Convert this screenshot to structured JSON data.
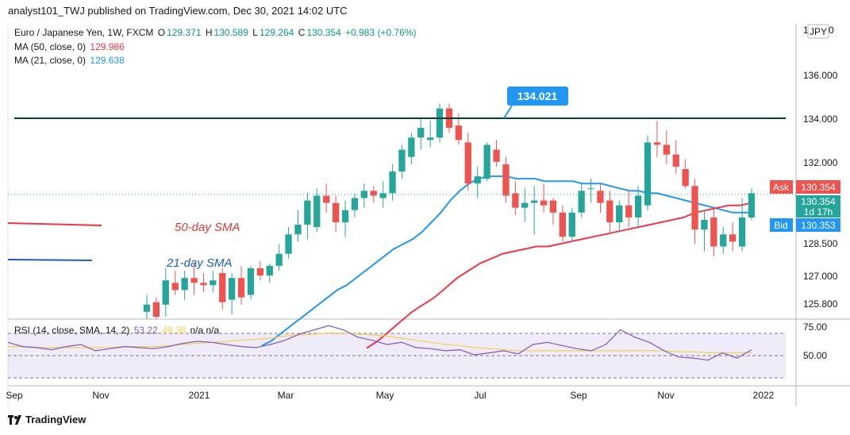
{
  "header": {
    "published_line": "analyst101_TWJ published on TradingView.com, Dec 30, 2021 14:02 UTC"
  },
  "legend": {
    "title": "Euro / Japanese Yen, 1W, FXCM",
    "o_label": "O",
    "o_val": "129.371",
    "h_label": "H",
    "h_val": "130.589",
    "l_label": "L",
    "l_val": "129.264",
    "c_label": "C",
    "c_val": "130.354",
    "change": "+0.983 (+0.76%)",
    "ma50_label": "MA (50, close, 0)",
    "ma50_val": "129.986",
    "ma21_label": "MA (21, close, 0)",
    "ma21_val": "129.638",
    "rsi_label": "RSI (14, close, SMA, 14, 2)",
    "rsi_val": "53.22",
    "rsi_sma_val": "49.38",
    "rsi_na": "n/a n/a"
  },
  "annotations": {
    "level_label": "134.021",
    "sma50_text": "50-day SMA",
    "sma21_text": "21-day SMA"
  },
  "price_axis": {
    "currency": "JPY",
    "top_partial": "1",
    "top_partial_tail": "0",
    "ticks": [
      "136.000",
      "134.000",
      "132.000",
      "128.500",
      "127.000",
      "125.800"
    ],
    "ask_label": "Ask",
    "ask_val": "130.354",
    "last_val": "130.354",
    "countdown": "1d 17h",
    "bid_label": "Bid",
    "bid_val": "130.353",
    "rsi_ticks": [
      "75.00",
      "50.00"
    ]
  },
  "time_axis": [
    "Sep",
    "Nov",
    "2021",
    "Mar",
    "May",
    "Jul",
    "Sep",
    "Nov",
    "2022"
  ],
  "brand": {
    "name": "TradingView"
  },
  "colors": {
    "up": "#26a69a",
    "down": "#ef5350",
    "ma50": "#f23645",
    "ma21": "#2196f3",
    "rsi": "#7e57c2",
    "rsi_sma": "#f5d14e",
    "level": "#0b3d2e",
    "label_bg": "#2196f3"
  },
  "chart_data": {
    "type": "candlestick",
    "title": "Euro / Japanese Yen, 1W, FXCM",
    "ylim": [
      125.2,
      137.4
    ],
    "rsi_ylim": [
      20,
      80
    ],
    "horizontal_level": 134.021,
    "candles": [
      {
        "o": 125.5,
        "h": 126.2,
        "l": 125.2,
        "c": 125.8
      },
      {
        "o": 125.9,
        "h": 126.1,
        "l": 125.2,
        "c": 125.3
      },
      {
        "o": 125.8,
        "h": 127.3,
        "l": 125.3,
        "c": 126.8
      },
      {
        "o": 126.7,
        "h": 127.2,
        "l": 126.2,
        "c": 126.4
      },
      {
        "o": 126.4,
        "h": 127.2,
        "l": 126.0,
        "c": 126.9
      },
      {
        "o": 126.9,
        "h": 127.5,
        "l": 126.2,
        "c": 126.7
      },
      {
        "o": 126.7,
        "h": 127.1,
        "l": 126.3,
        "c": 126.6
      },
      {
        "o": 126.6,
        "h": 127.2,
        "l": 126.3,
        "c": 126.8
      },
      {
        "o": 127.1,
        "h": 127.3,
        "l": 125.6,
        "c": 125.9
      },
      {
        "o": 126.0,
        "h": 127.1,
        "l": 125.4,
        "c": 126.9
      },
      {
        "o": 126.9,
        "h": 127.4,
        "l": 125.8,
        "c": 126.1
      },
      {
        "o": 126.2,
        "h": 127.4,
        "l": 126.0,
        "c": 127.3
      },
      {
        "o": 127.3,
        "h": 127.6,
        "l": 126.8,
        "c": 127.0
      },
      {
        "o": 127.0,
        "h": 127.5,
        "l": 126.7,
        "c": 127.4
      },
      {
        "o": 127.4,
        "h": 128.3,
        "l": 127.2,
        "c": 127.9
      },
      {
        "o": 127.9,
        "h": 129.0,
        "l": 127.7,
        "c": 128.7
      },
      {
        "o": 128.7,
        "h": 129.7,
        "l": 128.4,
        "c": 129.1
      },
      {
        "o": 129.1,
        "h": 130.4,
        "l": 128.5,
        "c": 130.1
      },
      {
        "o": 129.0,
        "h": 130.6,
        "l": 128.8,
        "c": 130.3
      },
      {
        "o": 130.3,
        "h": 130.8,
        "l": 129.6,
        "c": 130.0
      },
      {
        "o": 130.0,
        "h": 130.3,
        "l": 128.8,
        "c": 129.2
      },
      {
        "o": 129.2,
        "h": 130.1,
        "l": 128.6,
        "c": 129.7
      },
      {
        "o": 129.7,
        "h": 130.4,
        "l": 129.4,
        "c": 130.2
      },
      {
        "o": 130.2,
        "h": 130.8,
        "l": 129.8,
        "c": 130.5
      },
      {
        "o": 130.5,
        "h": 130.7,
        "l": 130.0,
        "c": 130.3
      },
      {
        "o": 130.2,
        "h": 130.9,
        "l": 129.8,
        "c": 130.4
      },
      {
        "o": 130.4,
        "h": 131.6,
        "l": 130.1,
        "c": 131.3
      },
      {
        "o": 131.3,
        "h": 132.4,
        "l": 131.0,
        "c": 132.2
      },
      {
        "o": 131.9,
        "h": 132.9,
        "l": 131.6,
        "c": 132.7
      },
      {
        "o": 132.7,
        "h": 133.5,
        "l": 132.2,
        "c": 133.1
      },
      {
        "o": 132.6,
        "h": 133.4,
        "l": 132.3,
        "c": 132.7
      },
      {
        "o": 132.7,
        "h": 134.1,
        "l": 132.5,
        "c": 133.9
      },
      {
        "o": 133.9,
        "h": 134.1,
        "l": 132.9,
        "c": 133.1
      },
      {
        "o": 133.2,
        "h": 133.7,
        "l": 132.4,
        "c": 132.6
      },
      {
        "o": 132.5,
        "h": 132.9,
        "l": 130.5,
        "c": 130.8
      },
      {
        "o": 130.8,
        "h": 131.5,
        "l": 130.2,
        "c": 131.1
      },
      {
        "o": 131.0,
        "h": 132.5,
        "l": 130.9,
        "c": 132.4
      },
      {
        "o": 132.2,
        "h": 132.6,
        "l": 131.5,
        "c": 131.7
      },
      {
        "o": 131.6,
        "h": 131.9,
        "l": 130.0,
        "c": 130.3
      },
      {
        "o": 130.4,
        "h": 130.9,
        "l": 129.5,
        "c": 129.8
      },
      {
        "o": 129.8,
        "h": 130.6,
        "l": 129.2,
        "c": 130.0
      },
      {
        "o": 130.0,
        "h": 130.7,
        "l": 128.7,
        "c": 130.1
      },
      {
        "o": 130.1,
        "h": 130.8,
        "l": 129.6,
        "c": 129.9
      },
      {
        "o": 130.1,
        "h": 130.2,
        "l": 129.1,
        "c": 129.6
      },
      {
        "o": 129.6,
        "h": 129.9,
        "l": 128.4,
        "c": 128.6
      },
      {
        "o": 128.6,
        "h": 129.8,
        "l": 128.4,
        "c": 129.6
      },
      {
        "o": 129.6,
        "h": 130.8,
        "l": 129.4,
        "c": 130.5
      },
      {
        "o": 130.6,
        "h": 131.0,
        "l": 130.0,
        "c": 130.6
      },
      {
        "o": 130.5,
        "h": 130.8,
        "l": 129.6,
        "c": 130.0
      },
      {
        "o": 130.1,
        "h": 130.5,
        "l": 128.8,
        "c": 129.2
      },
      {
        "o": 129.2,
        "h": 130.1,
        "l": 128.8,
        "c": 129.9
      },
      {
        "o": 129.9,
        "h": 130.5,
        "l": 129.0,
        "c": 129.4
      },
      {
        "o": 129.4,
        "h": 130.7,
        "l": 129.0,
        "c": 130.3
      },
      {
        "o": 129.9,
        "h": 132.8,
        "l": 129.7,
        "c": 132.5
      },
      {
        "o": 132.5,
        "h": 133.4,
        "l": 131.9,
        "c": 132.4
      },
      {
        "o": 132.4,
        "h": 133.0,
        "l": 131.6,
        "c": 132.0
      },
      {
        "o": 132.0,
        "h": 132.6,
        "l": 131.2,
        "c": 131.5
      },
      {
        "o": 131.4,
        "h": 131.8,
        "l": 130.6,
        "c": 130.7
      },
      {
        "o": 130.7,
        "h": 131.0,
        "l": 128.3,
        "c": 128.9
      },
      {
        "o": 128.9,
        "h": 129.7,
        "l": 128.0,
        "c": 129.3
      },
      {
        "o": 129.4,
        "h": 129.8,
        "l": 127.8,
        "c": 128.2
      },
      {
        "o": 128.2,
        "h": 129.0,
        "l": 127.9,
        "c": 128.7
      },
      {
        "o": 128.7,
        "h": 129.2,
        "l": 128.0,
        "c": 128.4
      },
      {
        "o": 128.2,
        "h": 130.2,
        "l": 128.0,
        "c": 129.4
      },
      {
        "o": 129.4,
        "h": 130.6,
        "l": 129.3,
        "c": 130.4
      }
    ],
    "ma21": [
      124.1,
      124.3,
      124.6,
      124.9,
      125.2,
      125.5,
      125.8,
      126.1,
      126.4,
      126.6,
      126.9,
      127.2,
      127.5,
      127.8,
      128.1,
      128.3,
      128.5,
      128.8,
      129.2,
      129.6,
      130.1,
      130.5,
      130.8,
      131.0,
      131.1,
      131.1,
      131.1,
      131.0,
      131.0,
      131.0,
      130.9,
      130.9,
      130.9,
      130.9,
      130.8,
      130.8,
      130.8,
      130.7,
      130.6,
      130.5,
      130.5,
      130.4,
      130.4,
      130.3,
      130.2,
      130.1,
      130.0,
      129.9,
      129.8,
      129.7,
      129.6,
      129.6,
      129.6
    ],
    "ma50": [
      124.0,
      124.3,
      124.7,
      125.1,
      125.5,
      125.8,
      126.1,
      126.5,
      126.9,
      127.2,
      127.5,
      127.7,
      127.9,
      128.0,
      128.1,
      128.2,
      128.2,
      128.3,
      128.4,
      128.5,
      128.6,
      128.7,
      128.8,
      128.9,
      129.0,
      129.1,
      129.2,
      129.3,
      129.4,
      129.6,
      129.7,
      129.8,
      129.9,
      129.9,
      130.0
    ],
    "rsi": [
      60,
      56,
      55,
      53,
      56,
      58,
      52,
      54,
      56,
      55,
      54,
      56,
      59,
      61,
      60,
      58,
      56,
      55,
      58,
      62,
      68,
      72,
      76,
      72,
      65,
      62,
      58,
      60,
      55,
      54,
      52,
      53,
      48,
      50,
      52,
      49,
      58,
      60,
      57,
      54,
      52,
      58,
      72,
      65,
      60,
      52,
      46,
      45,
      43,
      50,
      45,
      53
    ],
    "rsi_sma": [
      56,
      56,
      55,
      55,
      55,
      55,
      55,
      55,
      56,
      56,
      56,
      57,
      58,
      59,
      60,
      61,
      62,
      63,
      64,
      66,
      67,
      68,
      69,
      69,
      68,
      67,
      66,
      64,
      62,
      60,
      58,
      57,
      55,
      54,
      53,
      52,
      52,
      52,
      52,
      52,
      52,
      52,
      52,
      52,
      52,
      52,
      51,
      51,
      50,
      50,
      50,
      50
    ],
    "y_ticks": [
      136.0,
      134.0,
      132.0,
      128.5,
      127.0,
      125.8
    ]
  }
}
